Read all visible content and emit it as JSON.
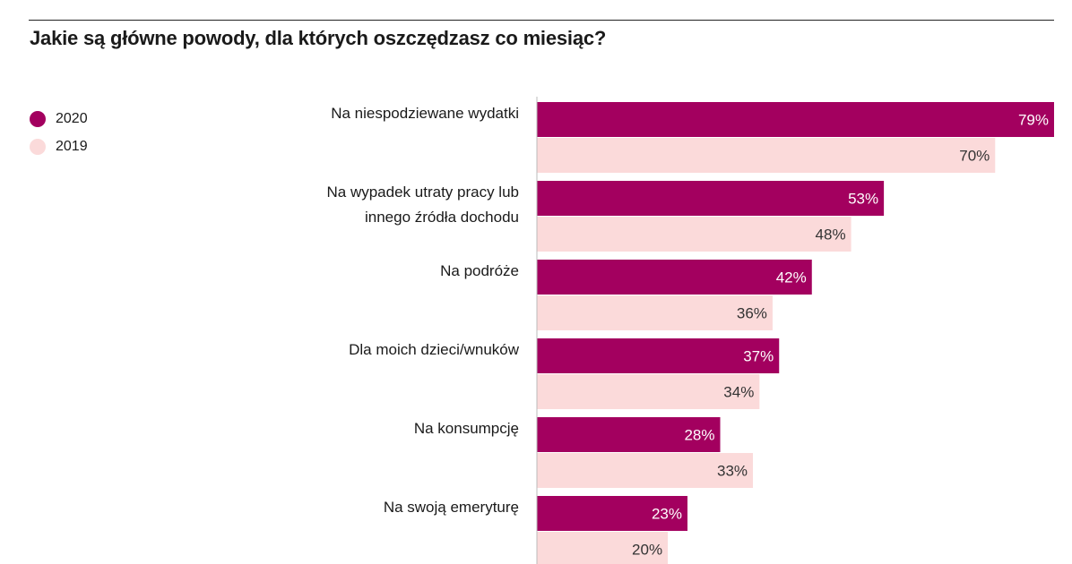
{
  "chart_data": {
    "type": "bar",
    "orientation": "horizontal",
    "title": "Jakie są główne powody, dla których oszczędzasz co miesiąc?",
    "categories": [
      [
        "Na niespodziewane wydatki"
      ],
      [
        "Na wypadek utraty pracy lub",
        "innego źródła dochodu"
      ],
      [
        "Na podróże"
      ],
      [
        "Dla moich dzieci/wnuków"
      ],
      [
        "Na konsumpcję"
      ],
      [
        "Na swoją emeryturę"
      ]
    ],
    "series": [
      {
        "name": "2020",
        "color": "#a3005f",
        "label_color": "#ffffff",
        "values": [
          79,
          53,
          42,
          37,
          28,
          23
        ],
        "labels": [
          "79%",
          "53%",
          "42%",
          "37%",
          "28%",
          "23%"
        ]
      },
      {
        "name": "2019",
        "color": "#fbdada",
        "label_color": "#333333",
        "values": [
          70,
          48,
          36,
          34,
          33,
          20
        ],
        "labels": [
          "70%",
          "48%",
          "36%",
          "34%",
          "33%",
          "20%"
        ]
      }
    ],
    "xlim": [
      0,
      79
    ],
    "legend_position": "top-left",
    "grid": false
  }
}
